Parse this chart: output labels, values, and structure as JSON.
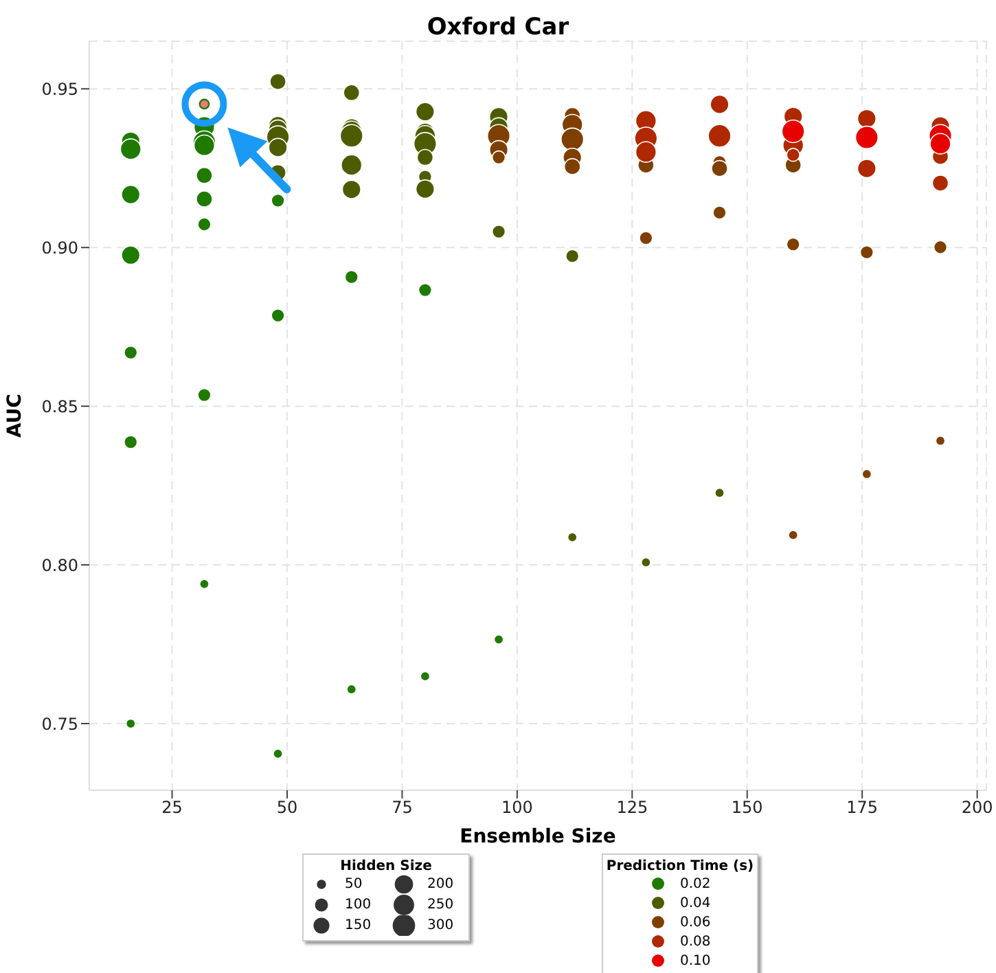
{
  "chart_data": {
    "type": "bubble",
    "title": "Oxford Car",
    "xlabel": "Ensemble Size",
    "ylabel": "AUC",
    "legend_title": "Prediction Time (s)",
    "annotations": [
      "Hidden Size"
    ],
    "legend": "bottom",
    "grid": true,
    "xlim": [
      7,
      202
    ],
    "xticks": [
      25,
      50,
      75,
      100,
      125,
      150,
      175,
      200
    ],
    "ylim": [
      0.729,
      0.965
    ],
    "yticks": [
      0.75,
      {
        "value": 0.8,
        "label": "0.80"
      },
      0.85,
      {
        "value": 0.9,
        "label": "0.90"
      },
      0.95
    ],
    "size_legend": [
      50,
      100,
      150,
      200,
      250,
      300
    ],
    "series": [
      {
        "name": "0.02",
        "color": "#1e7b00",
        "x": [
          16,
          16,
          16,
          16,
          16,
          16,
          16,
          32,
          32,
          32,
          32,
          32,
          32,
          32,
          32,
          48,
          48,
          48,
          64,
          64,
          80,
          80,
          96
        ],
        "values": [
          0.9335,
          0.931,
          0.9167,
          0.8976,
          0.8669,
          0.8387,
          0.75,
          0.938,
          0.9332,
          0.9322,
          0.9227,
          0.9153,
          0.9073,
          0.8535,
          0.794,
          0.9148,
          0.8786,
          0.7405,
          0.8907,
          0.7608,
          0.8866,
          0.7649,
          0.7765
        ],
        "sizes": [
          200,
          250,
          200,
          200,
          100,
          100,
          50,
          250,
          300,
          250,
          150,
          150,
          100,
          100,
          50,
          100,
          100,
          50,
          100,
          50,
          100,
          50,
          50
        ]
      },
      {
        "name": "0.04",
        "color": "#4d5c00",
        "x": [
          48,
          48,
          48,
          48,
          48,
          48,
          64,
          64,
          64,
          64,
          64,
          64,
          80,
          80,
          80,
          80,
          80,
          80,
          80,
          96,
          96,
          96,
          112,
          112,
          128,
          144
        ],
        "values": [
          0.9523,
          0.9384,
          0.9373,
          0.9348,
          0.9315,
          0.9236,
          0.9488,
          0.9377,
          0.9366,
          0.9352,
          0.926,
          0.9183,
          0.9428,
          0.9363,
          0.9352,
          0.9327,
          0.9284,
          0.9223,
          0.9184,
          0.9412,
          0.938,
          0.905,
          0.8973,
          0.8087,
          0.8008,
          0.8227
        ],
        "sizes": [
          150,
          200,
          200,
          300,
          200,
          150,
          150,
          200,
          250,
          300,
          250,
          200,
          200,
          200,
          250,
          300,
          150,
          100,
          200,
          200,
          200,
          100,
          100,
          50,
          50,
          50
        ]
      },
      {
        "name": "0.06",
        "color": "#7f3f00",
        "x": [
          96,
          96,
          96,
          112,
          112,
          112,
          112,
          112,
          128,
          128,
          144,
          144,
          144,
          160,
          160,
          160,
          176,
          176,
          192,
          192
        ],
        "values": [
          0.9352,
          0.9308,
          0.9284,
          0.9416,
          0.9387,
          0.9341,
          0.9284,
          0.9255,
          0.926,
          0.903,
          0.9269,
          0.9249,
          0.911,
          0.926,
          0.901,
          0.8094,
          0.8985,
          0.8286,
          0.9001,
          0.8391
        ],
        "sizes": [
          300,
          200,
          100,
          150,
          250,
          300,
          200,
          150,
          150,
          100,
          100,
          150,
          100,
          150,
          100,
          50,
          100,
          50,
          100,
          50
        ]
      },
      {
        "name": "0.08",
        "color": "#b02800",
        "x": [
          128,
          128,
          128,
          144,
          144,
          160,
          160,
          160,
          176,
          176,
          192,
          192,
          192
        ],
        "values": [
          0.9399,
          0.9344,
          0.9301,
          0.9451,
          0.9352,
          0.9413,
          0.9322,
          0.9292,
          0.9406,
          0.9249,
          0.9383,
          0.9287,
          0.9203
        ],
        "sizes": [
          250,
          300,
          250,
          200,
          300,
          200,
          250,
          100,
          200,
          200,
          200,
          150,
          150
        ]
      },
      {
        "name": "0.10",
        "color": "#e80000",
        "x": [
          160,
          176,
          192,
          192
        ],
        "values": [
          0.9366,
          0.9347,
          0.9352,
          0.9327
        ],
        "sizes": [
          300,
          300,
          300,
          250
        ]
      },
      {
        "color": "#f07880",
        "x": [
          32
        ],
        "values": [
          0.9452
        ],
        "sizes": [
          50
        ]
      }
    ]
  }
}
